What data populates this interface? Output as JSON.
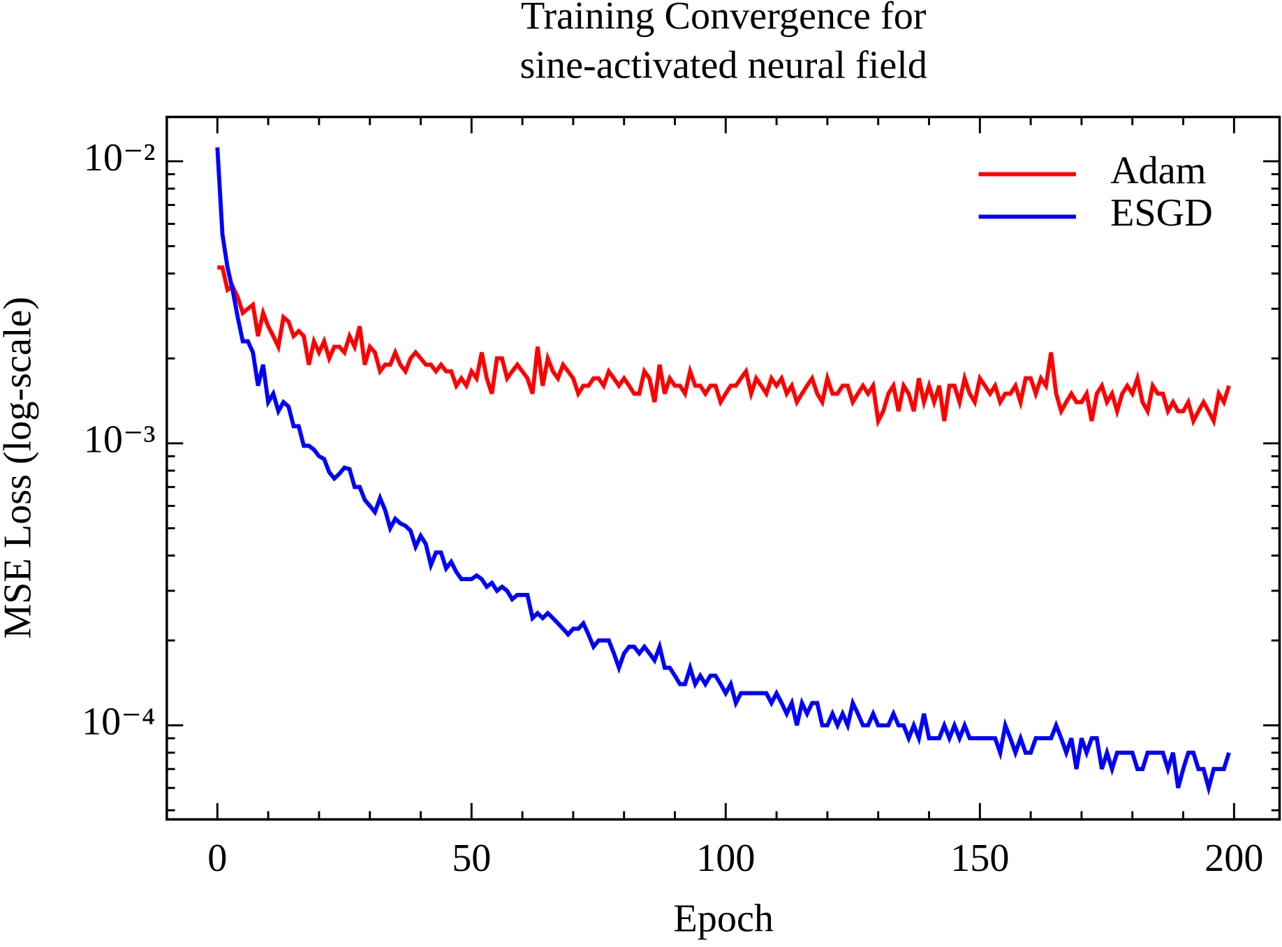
{
  "chart_data": {
    "type": "line",
    "title": [
      "Training Convergence for",
      "sine-activated neural field"
    ],
    "xlabel": "Epoch",
    "ylabel": "MSE Loss (log-scale)",
    "xlim": [
      -9.95,
      208.95
    ],
    "ylim": [
      4.64e-05,
      0.01436
    ],
    "yscale": "log",
    "xticks": [
      0,
      50,
      100,
      150,
      200
    ],
    "xminor": [
      10,
      20,
      30,
      40,
      60,
      70,
      80,
      90,
      110,
      120,
      130,
      140,
      160,
      170,
      180,
      190
    ],
    "yticks": [
      {
        "value": 0.0001,
        "label": "10⁻⁴"
      },
      {
        "value": 0.001,
        "label": "10⁻³"
      },
      {
        "value": 0.01,
        "label": "10⁻²"
      }
    ],
    "yminor": [
      5e-05,
      6e-05,
      7e-05,
      8e-05,
      9e-05,
      0.0002,
      0.0003,
      0.0004,
      0.0005,
      0.0006,
      0.0007,
      0.0008,
      0.0009,
      0.002,
      0.003,
      0.004,
      0.005,
      0.006,
      0.007,
      0.008,
      0.009
    ],
    "legend": "upper right",
    "grid": false,
    "x": [
      0,
      1,
      2,
      3,
      4,
      5,
      6,
      7,
      8,
      9,
      10,
      11,
      12,
      13,
      14,
      15,
      16,
      17,
      18,
      19,
      20,
      21,
      22,
      23,
      24,
      25,
      26,
      27,
      28,
      29,
      30,
      31,
      32,
      33,
      34,
      35,
      36,
      37,
      38,
      39,
      40,
      41,
      42,
      43,
      44,
      45,
      46,
      47,
      48,
      49,
      50,
      51,
      52,
      53,
      54,
      55,
      56,
      57,
      58,
      59,
      60,
      61,
      62,
      63,
      64,
      65,
      66,
      67,
      68,
      69,
      70,
      71,
      72,
      73,
      74,
      75,
      76,
      77,
      78,
      79,
      80,
      81,
      82,
      83,
      84,
      85,
      86,
      87,
      88,
      89,
      90,
      91,
      92,
      93,
      94,
      95,
      96,
      97,
      98,
      99,
      100,
      101,
      102,
      103,
      104,
      105,
      106,
      107,
      108,
      109,
      110,
      111,
      112,
      113,
      114,
      115,
      116,
      117,
      118,
      119,
      120,
      121,
      122,
      123,
      124,
      125,
      126,
      127,
      128,
      129,
      130,
      131,
      132,
      133,
      134,
      135,
      136,
      137,
      138,
      139,
      140,
      141,
      142,
      143,
      144,
      145,
      146,
      147,
      148,
      149,
      150,
      151,
      152,
      153,
      154,
      155,
      156,
      157,
      158,
      159,
      160,
      161,
      162,
      163,
      164,
      165,
      166,
      167,
      168,
      169,
      170,
      171,
      172,
      173,
      174,
      175,
      176,
      177,
      178,
      179,
      180,
      181,
      182,
      183,
      184,
      185,
      186,
      187,
      188,
      189,
      190,
      191,
      192,
      193,
      194,
      195,
      196,
      197,
      198,
      199
    ],
    "series": [
      {
        "name": "Adam",
        "color": "#ff0000",
        "values": [
          0.0042,
          0.0042,
          0.0035,
          0.0036,
          0.0033,
          0.0029,
          0.003,
          0.0031,
          0.0024,
          0.0029,
          0.0026,
          0.0024,
          0.0022,
          0.0028,
          0.0027,
          0.0024,
          0.0025,
          0.0024,
          0.0019,
          0.0023,
          0.0021,
          0.0023,
          0.002,
          0.0022,
          0.0022,
          0.0021,
          0.0024,
          0.0022,
          0.0026,
          0.0019,
          0.0022,
          0.0021,
          0.0018,
          0.0019,
          0.0019,
          0.0021,
          0.0019,
          0.0018,
          0.002,
          0.0021,
          0.002,
          0.0019,
          0.0019,
          0.0018,
          0.0019,
          0.0018,
          0.0018,
          0.0016,
          0.0017,
          0.0016,
          0.0018,
          0.0017,
          0.0021,
          0.0017,
          0.0015,
          0.002,
          0.002,
          0.0017,
          0.0018,
          0.0019,
          0.0018,
          0.0017,
          0.0015,
          0.0022,
          0.0016,
          0.002,
          0.0018,
          0.0017,
          0.0019,
          0.0018,
          0.0017,
          0.0015,
          0.0016,
          0.0016,
          0.0017,
          0.0017,
          0.0016,
          0.0018,
          0.0017,
          0.0016,
          0.0017,
          0.0016,
          0.0015,
          0.0015,
          0.0018,
          0.0017,
          0.0014,
          0.0019,
          0.0015,
          0.0017,
          0.0016,
          0.0016,
          0.0015,
          0.0018,
          0.0016,
          0.0016,
          0.0015,
          0.0016,
          0.0016,
          0.0014,
          0.0015,
          0.0016,
          0.0016,
          0.0017,
          0.0018,
          0.0015,
          0.0017,
          0.0016,
          0.0015,
          0.0017,
          0.0016,
          0.0017,
          0.0015,
          0.0016,
          0.0014,
          0.0015,
          0.0016,
          0.0017,
          0.0015,
          0.0014,
          0.0017,
          0.0015,
          0.0015,
          0.0016,
          0.0016,
          0.0014,
          0.0015,
          0.0016,
          0.0015,
          0.0016,
          0.0012,
          0.0013,
          0.0015,
          0.0016,
          0.0013,
          0.0016,
          0.0015,
          0.0013,
          0.0017,
          0.0014,
          0.0016,
          0.0014,
          0.0016,
          0.0012,
          0.0016,
          0.0016,
          0.0014,
          0.0017,
          0.0015,
          0.0014,
          0.0017,
          0.0016,
          0.0015,
          0.0016,
          0.0014,
          0.0015,
          0.0015,
          0.0016,
          0.0014,
          0.0017,
          0.0017,
          0.0015,
          0.0017,
          0.0016,
          0.0021,
          0.0015,
          0.0013,
          0.0014,
          0.0015,
          0.0014,
          0.0014,
          0.0015,
          0.0012,
          0.0015,
          0.0016,
          0.0014,
          0.0015,
          0.0013,
          0.0015,
          0.0016,
          0.0015,
          0.0017,
          0.0014,
          0.0013,
          0.0016,
          0.0015,
          0.0015,
          0.0013,
          0.0014,
          0.0013,
          0.0013,
          0.0014,
          0.0012,
          0.0013,
          0.0014,
          0.0013,
          0.0012,
          0.0015,
          0.0014,
          0.0016
        ]
      },
      {
        "name": "ESGD",
        "color": "#0000ff",
        "values": [
          0.0112,
          0.0055,
          0.0042,
          0.0035,
          0.0028,
          0.0023,
          0.0023,
          0.0021,
          0.0016,
          0.0019,
          0.0014,
          0.0015,
          0.0013,
          0.0014,
          0.00135,
          0.00115,
          0.00115,
          0.00098,
          0.00098,
          0.00095,
          0.0009,
          0.00088,
          0.00079,
          0.00075,
          0.00078,
          0.00082,
          0.00081,
          0.0007,
          0.0007,
          0.00063,
          0.0006,
          0.00057,
          0.00064,
          0.00058,
          0.0005,
          0.00054,
          0.00052,
          0.00051,
          0.00049,
          0.00043,
          0.00047,
          0.00044,
          0.00037,
          0.00041,
          0.00041,
          0.00036,
          0.00038,
          0.00035,
          0.00033,
          0.00033,
          0.00033,
          0.00034,
          0.00033,
          0.00031,
          0.00032,
          0.0003,
          0.00031,
          0.0003,
          0.00028,
          0.00029,
          0.00029,
          0.00029,
          0.00024,
          0.00025,
          0.00024,
          0.00025,
          0.00024,
          0.00023,
          0.00022,
          0.00021,
          0.00022,
          0.00022,
          0.00023,
          0.00021,
          0.00019,
          0.0002,
          0.0002,
          0.0002,
          0.00018,
          0.00016,
          0.00018,
          0.00019,
          0.00019,
          0.00018,
          0.00019,
          0.00018,
          0.00017,
          0.00019,
          0.00016,
          0.00016,
          0.00015,
          0.00014,
          0.00014,
          0.00016,
          0.00014,
          0.00015,
          0.00014,
          0.00015,
          0.00015,
          0.00014,
          0.00013,
          0.00014,
          0.00012,
          0.00013,
          0.00013,
          0.00013,
          0.00013,
          0.00013,
          0.00013,
          0.00012,
          0.00013,
          0.00012,
          0.00011,
          0.00012,
          0.0001,
          0.00012,
          0.00011,
          0.00012,
          0.00012,
          0.0001,
          0.0001,
          0.00011,
          0.0001,
          0.00011,
          0.0001,
          0.00012,
          0.00011,
          0.0001,
          0.0001,
          0.00011,
          0.0001,
          0.0001,
          0.0001,
          0.00011,
          0.0001,
          0.0001,
          9e-05,
          0.0001,
          9e-05,
          0.00011,
          9e-05,
          9e-05,
          9e-05,
          0.0001,
          9e-05,
          0.0001,
          9e-05,
          0.0001,
          9e-05,
          9e-05,
          9e-05,
          9e-05,
          9e-05,
          9e-05,
          8e-05,
          0.0001,
          9e-05,
          8e-05,
          9e-05,
          8e-05,
          8e-05,
          9e-05,
          9e-05,
          9e-05,
          9e-05,
          0.0001,
          9e-05,
          8e-05,
          9e-05,
          7e-05,
          9e-05,
          8e-05,
          9e-05,
          9e-05,
          7e-05,
          8e-05,
          7e-05,
          8e-05,
          8e-05,
          8e-05,
          8e-05,
          7e-05,
          7e-05,
          8e-05,
          8e-05,
          8e-05,
          8e-05,
          7e-05,
          8e-05,
          6e-05,
          7e-05,
          8e-05,
          8e-05,
          7e-05,
          7e-05,
          6e-05,
          7e-05,
          7e-05,
          7e-05,
          8e-05
        ]
      }
    ]
  }
}
